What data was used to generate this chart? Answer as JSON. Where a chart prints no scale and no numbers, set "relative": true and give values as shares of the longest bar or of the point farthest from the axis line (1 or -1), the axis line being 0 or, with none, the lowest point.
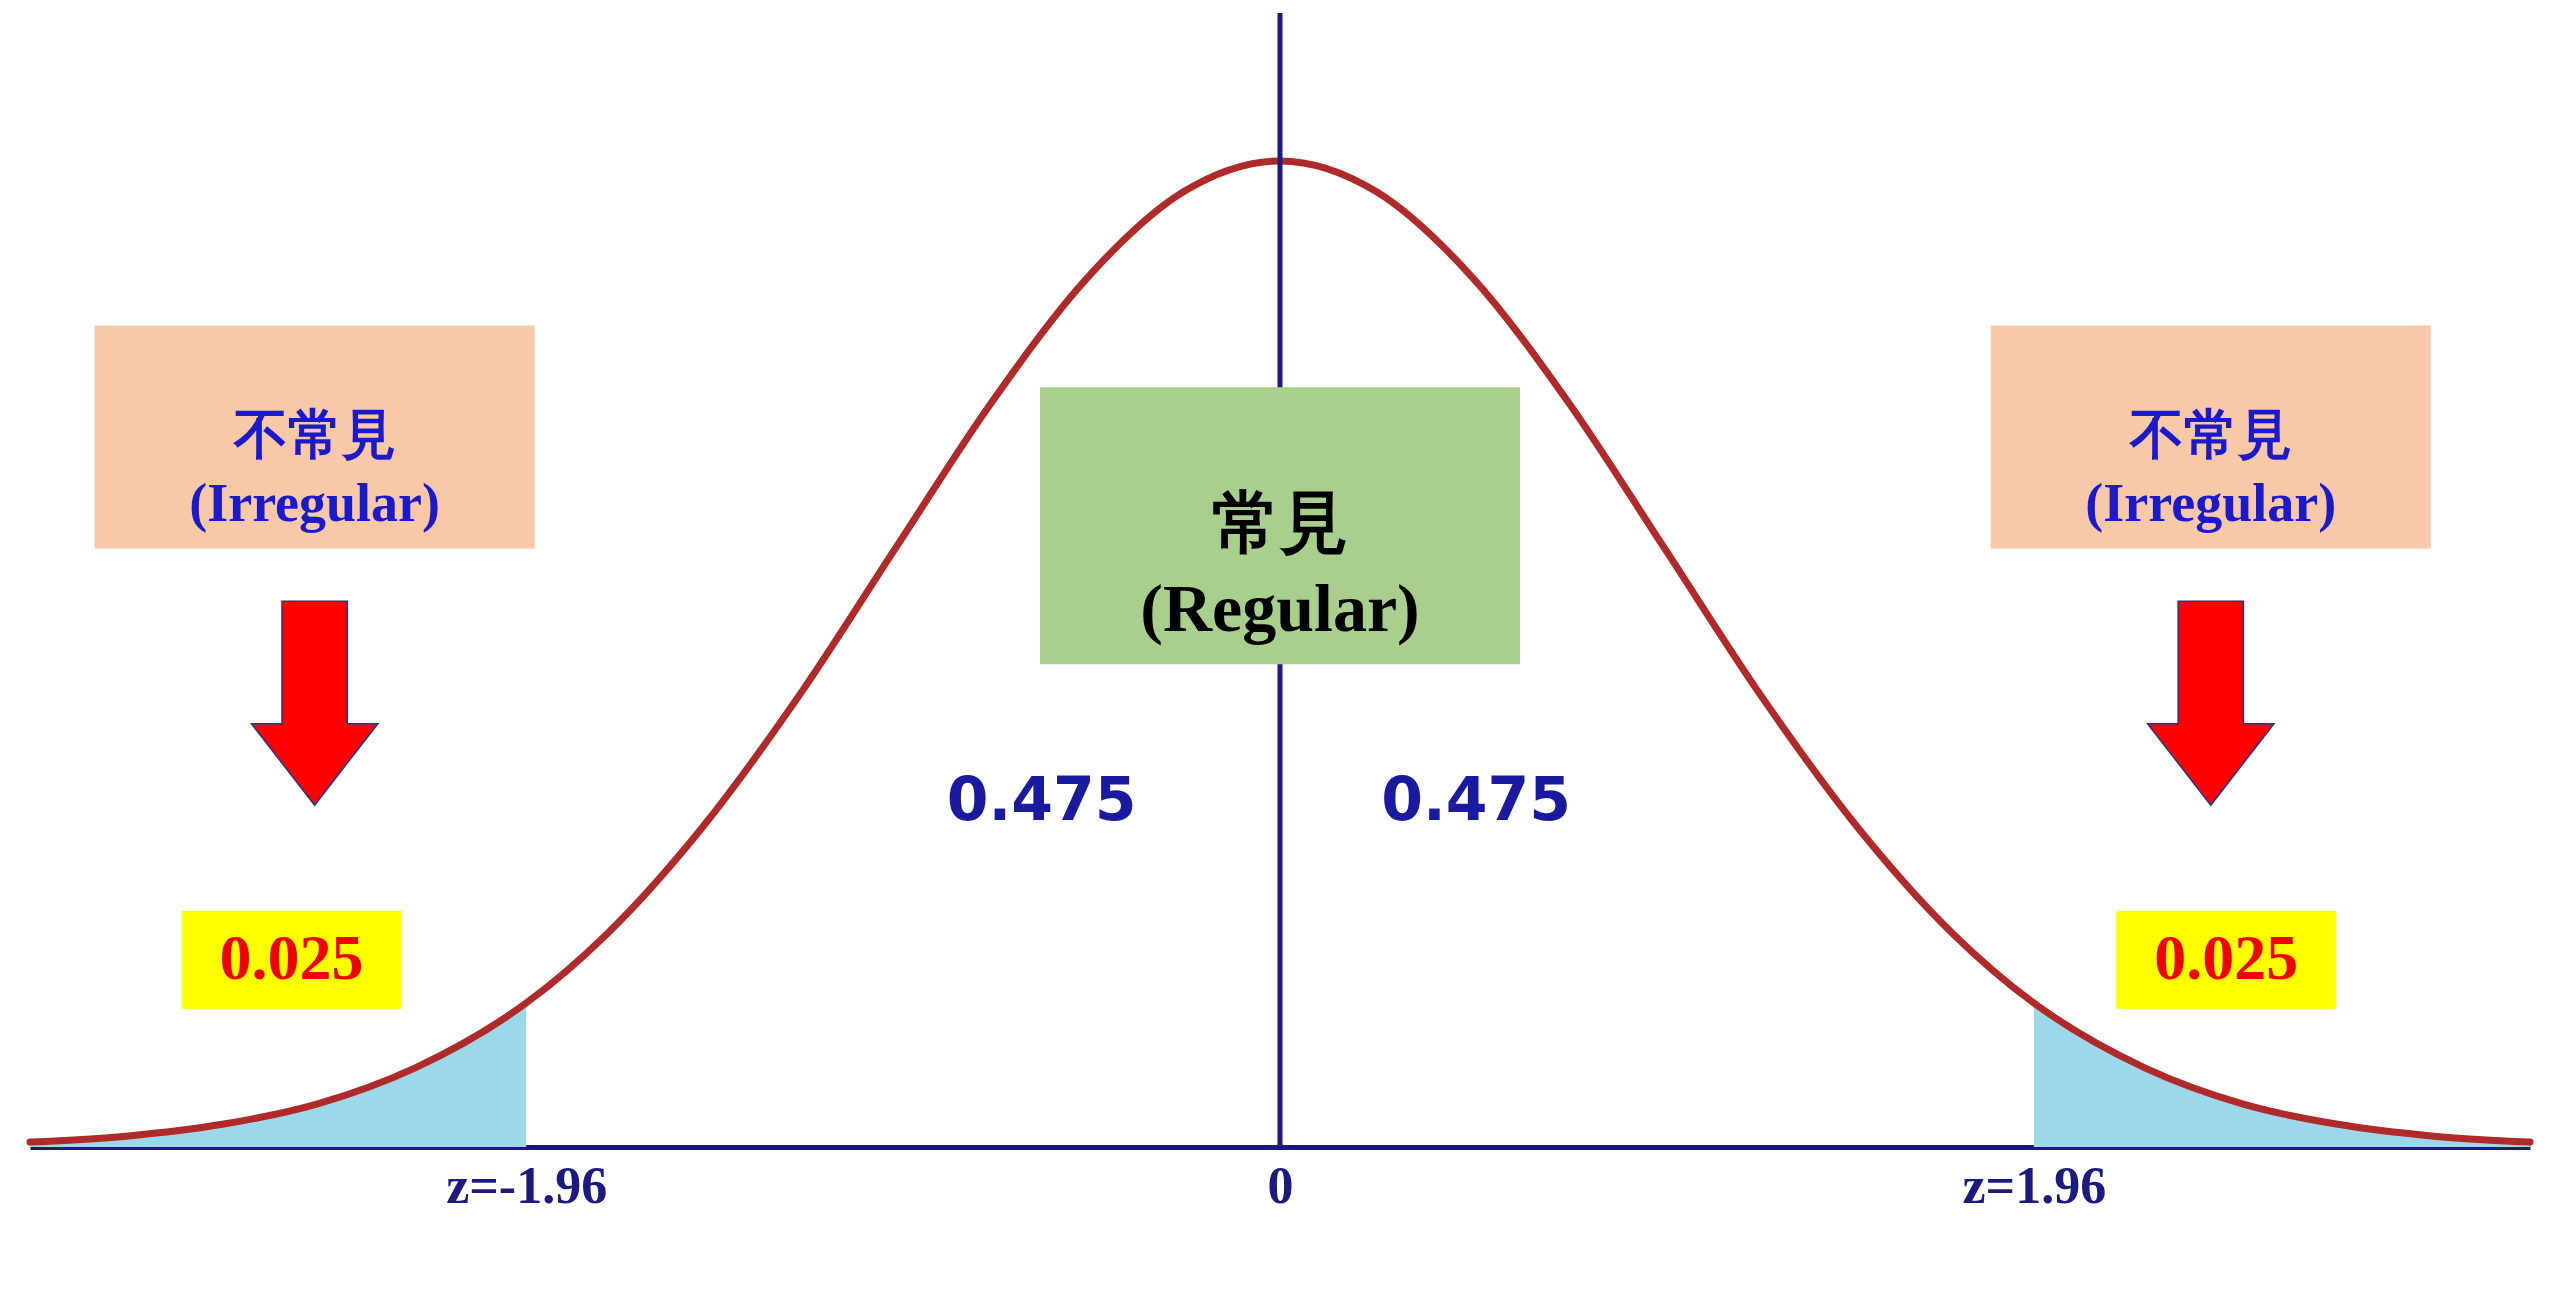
{
  "chart_data": {
    "type": "line",
    "relative": true,
    "xlim": [
      -3.25,
      3.25
    ],
    "xticks": [
      {
        "value": -1.96,
        "label": "z=-1.96"
      },
      0,
      {
        "value": 1.96,
        "label": "z=1.96"
      }
    ],
    "series": [
      {
        "type": "area",
        "color": "#9dd8ea",
        "x": [
          -3.25,
          -3,
          -2.75,
          -2.5,
          -2.25,
          -2,
          -1.96
        ],
        "values": [
          0.005,
          0.011,
          0.023,
          0.044,
          0.08,
          0.135,
          0.146
        ]
      },
      {
        "type": "area",
        "color": "#9dd8ea",
        "x": [
          1.96,
          2,
          2.25,
          2.5,
          2.75,
          3,
          3.25
        ],
        "values": [
          0.146,
          0.135,
          0.08,
          0.044,
          0.023,
          0.011,
          0.005
        ]
      },
      {
        "color": "#b02a2a",
        "x": [
          -3.25,
          -3,
          -2.75,
          -2.5,
          -2.25,
          -2,
          -1.96,
          -1.75,
          -1.5,
          -1.25,
          -1,
          -0.75,
          -0.5,
          -0.25,
          0,
          0.25,
          0.5,
          0.75,
          1,
          1.25,
          1.5,
          1.75,
          1.96,
          2,
          2.25,
          2.5,
          2.75,
          3,
          3.25
        ],
        "values": [
          0.005,
          0.011,
          0.023,
          0.044,
          0.08,
          0.135,
          0.146,
          0.216,
          0.325,
          0.458,
          0.607,
          0.755,
          0.882,
          0.969,
          1,
          0.969,
          0.882,
          0.755,
          0.607,
          0.458,
          0.325,
          0.216,
          0.146,
          0.135,
          0.08,
          0.044,
          0.023,
          0.011,
          0.005
        ]
      }
    ],
    "ref_lines": [
      {
        "axis": "x",
        "value": 0,
        "color": "#1a1a80"
      }
    ],
    "annotations": [
      "不常見\n(Irregular)",
      "常見\n(Regular)",
      "不常見\n(Irregular)",
      "0.475",
      "0.475",
      "0.025",
      "0.025"
    ],
    "grid": false
  }
}
